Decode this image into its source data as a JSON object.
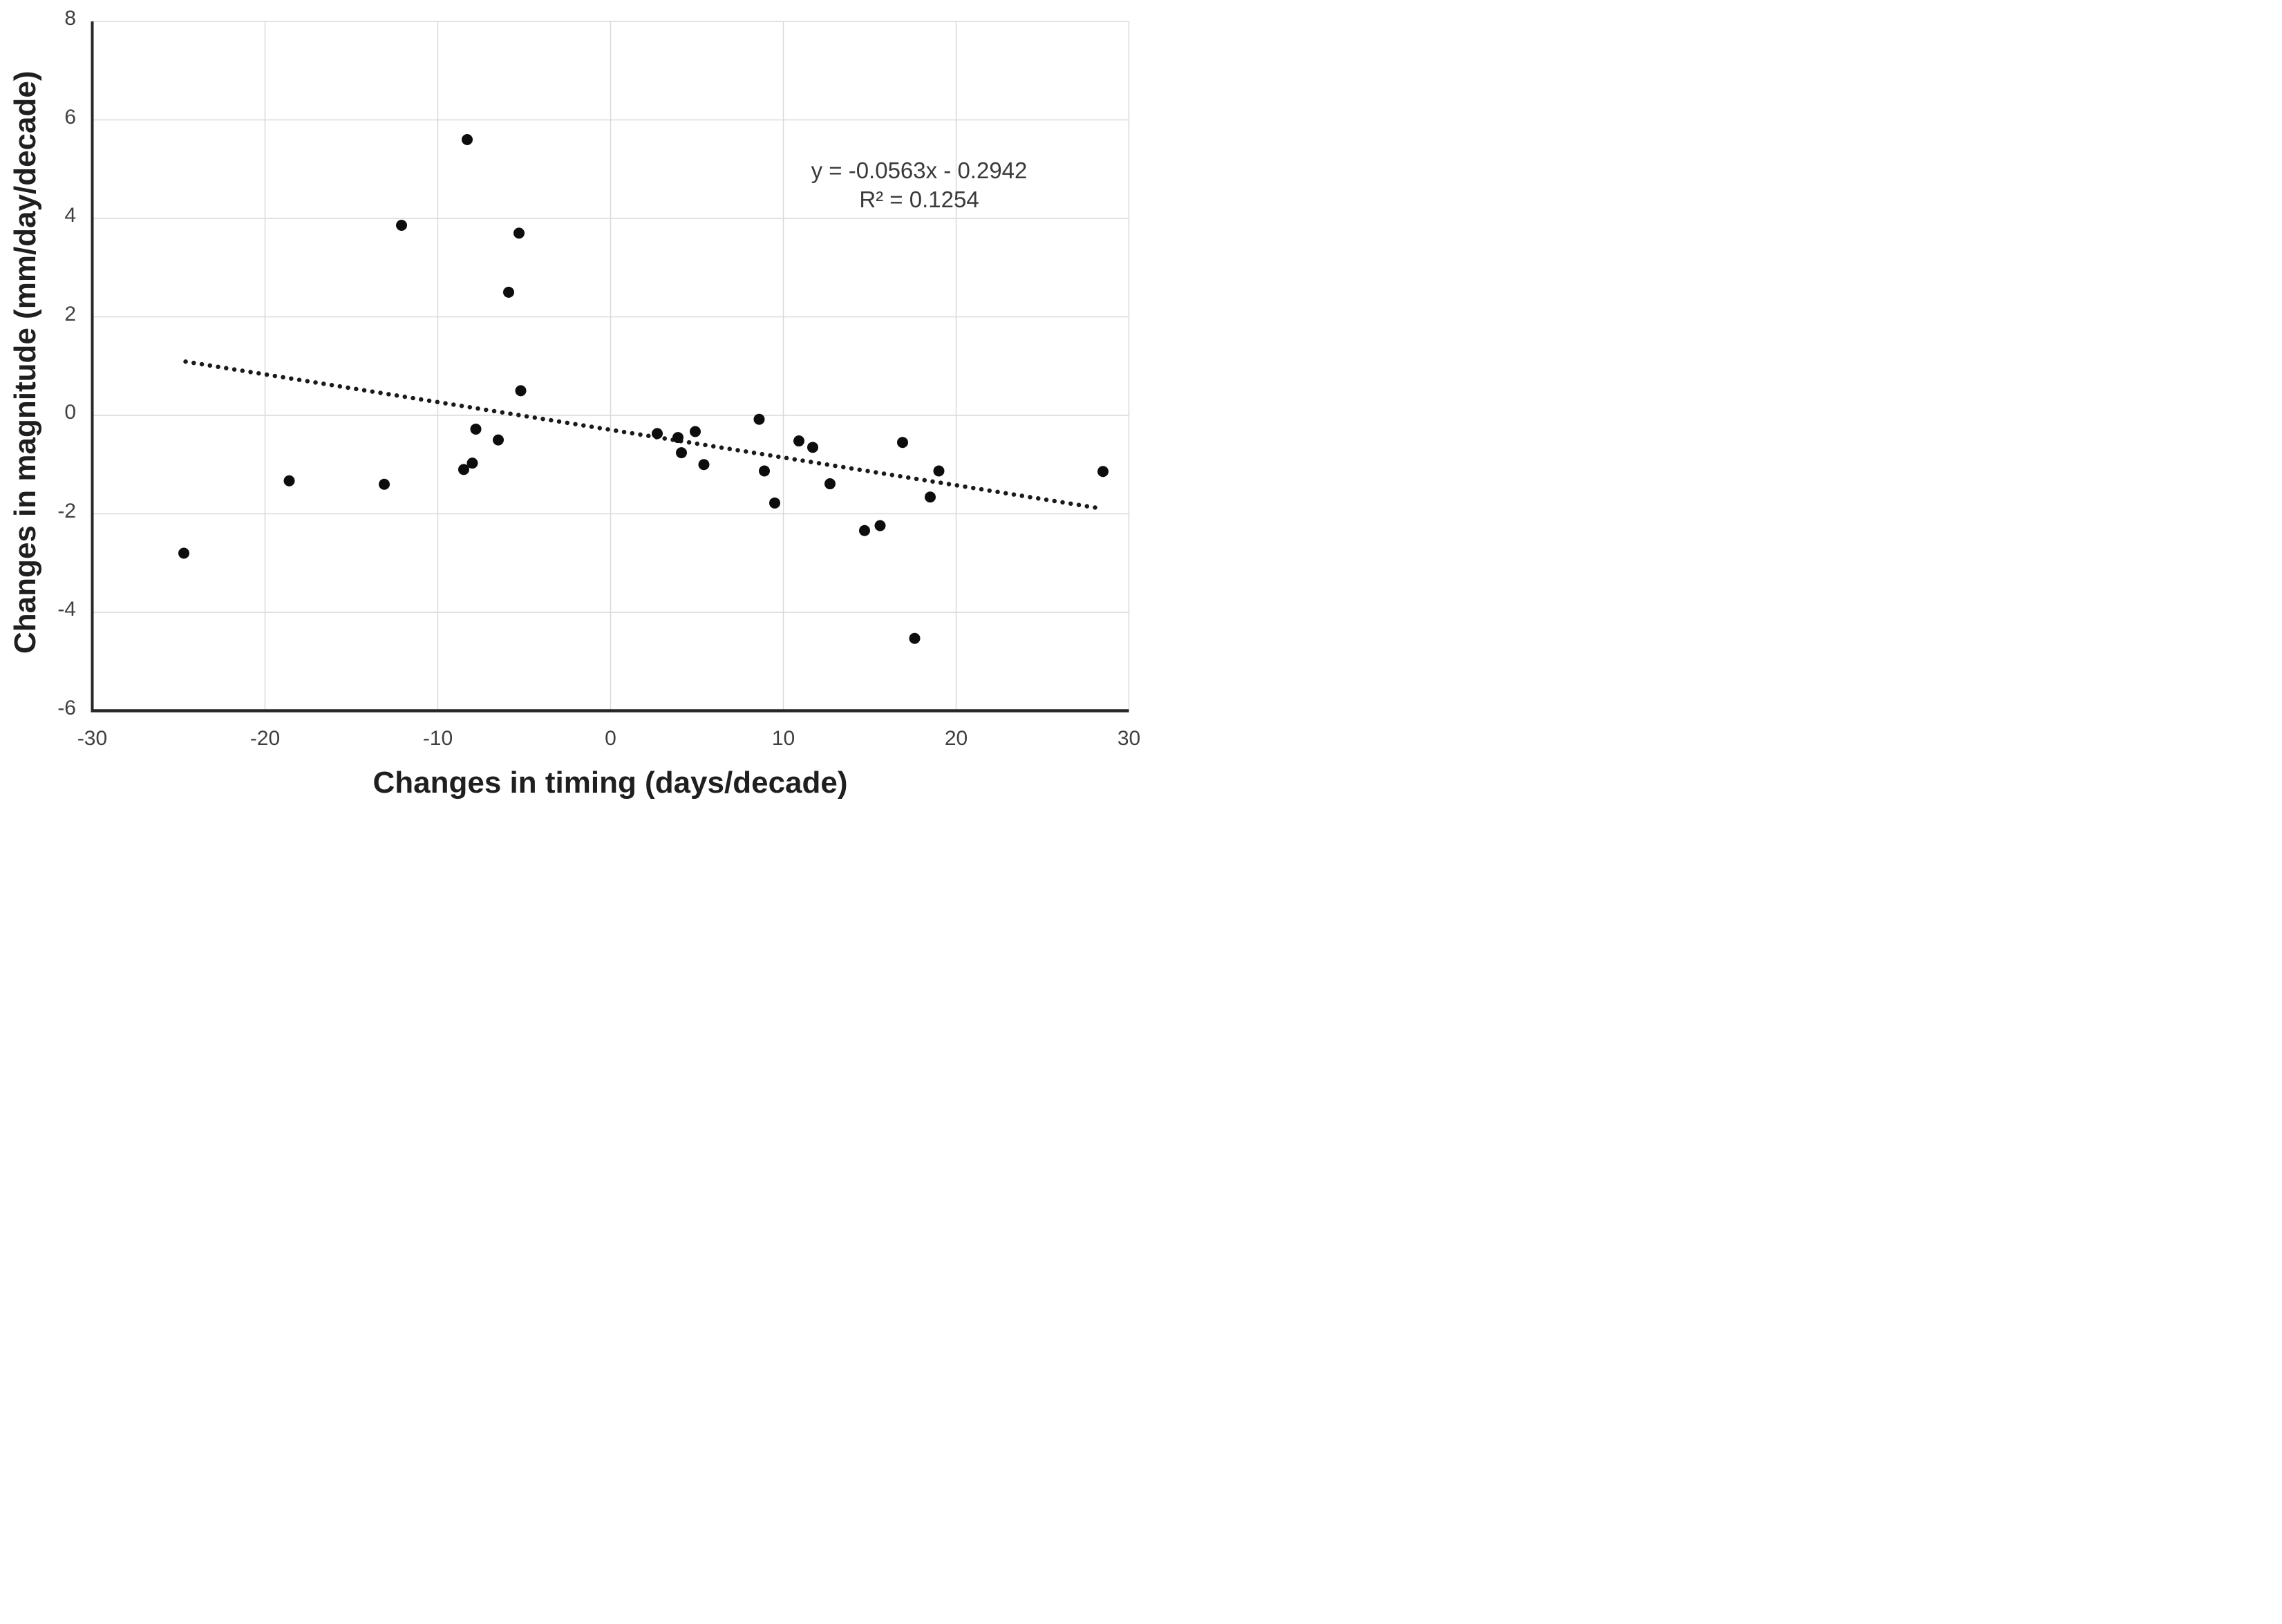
{
  "chart_data": {
    "type": "scatter",
    "title": "",
    "xlabel": "Changes in timing (days/decade)",
    "ylabel": "Changes in magnitude (mm/day/decade)",
    "xlim": [
      -30,
      30
    ],
    "ylim": [
      -6,
      8
    ],
    "x_ticks": [
      -30,
      -20,
      -10,
      0,
      10,
      20,
      30
    ],
    "y_ticks": [
      8,
      6,
      4,
      2,
      0,
      -2,
      -4,
      -6
    ],
    "grid": true,
    "legend": false,
    "marker_color": "#0d0d0d",
    "points": [
      [
        -24.7,
        -2.8
      ],
      [
        -18.6,
        -1.33
      ],
      [
        -13.1,
        -1.4
      ],
      [
        -12.1,
        3.86
      ],
      [
        -8.3,
        5.6
      ],
      [
        -5.9,
        2.5
      ],
      [
        -5.3,
        3.7
      ],
      [
        -5.2,
        0.5
      ],
      [
        -7.8,
        -0.28
      ],
      [
        -6.5,
        -0.5
      ],
      [
        -8.0,
        -0.97
      ],
      [
        -8.5,
        -1.1
      ],
      [
        2.7,
        -0.37
      ],
      [
        3.9,
        -0.45
      ],
      [
        4.9,
        -0.33
      ],
      [
        4.1,
        -0.76
      ],
      [
        5.4,
        -1.0
      ],
      [
        8.6,
        -0.08
      ],
      [
        8.9,
        -1.13
      ],
      [
        9.5,
        -1.78
      ],
      [
        10.9,
        -0.52
      ],
      [
        11.7,
        -0.65
      ],
      [
        12.7,
        -1.39
      ],
      [
        14.7,
        -2.34
      ],
      [
        15.6,
        -2.24
      ],
      [
        16.9,
        -0.55
      ],
      [
        17.6,
        -4.53
      ],
      [
        18.5,
        -1.66
      ],
      [
        19.0,
        -1.13
      ],
      [
        28.5,
        -1.14
      ]
    ],
    "trendline": {
      "style": "dotted",
      "slope": -0.0563,
      "intercept": -0.2942,
      "x_start": -24.6,
      "x_end": 28.3,
      "equation_text": "y = -0.0563x - 0.2942",
      "r_squared_text": "R² = 0.1254"
    },
    "colors": {
      "point": "#0d0d0d",
      "trendline": "#1a1a1a",
      "gridline": "#d9d9d9",
      "axis_line": "#262626",
      "tick_text": "#3f3f3f",
      "title_text": "#1f1f1f",
      "equation_text": "#3a3a3a",
      "background": "#ffffff"
    }
  }
}
